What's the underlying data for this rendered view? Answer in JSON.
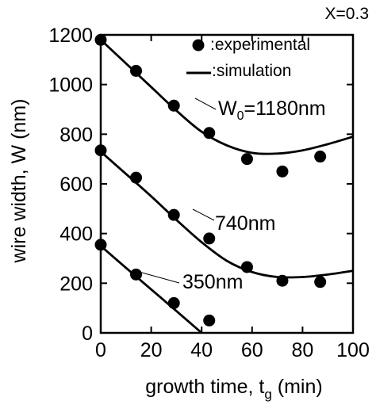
{
  "chart_data": {
    "type": "scatter",
    "annotation_top": "X=0.3",
    "xlabel_prefix": "growth time, t",
    "xlabel_sub": "g",
    "xlabel_suffix": " (min)",
    "ylabel": "wire width,  W   (nm)",
    "xlim": [
      0,
      100
    ],
    "ylim": [
      0,
      1200
    ],
    "xticks": [
      0,
      20,
      40,
      60,
      80,
      100
    ],
    "yticks": [
      0,
      200,
      400,
      600,
      800,
      1000,
      1200
    ],
    "grid": false,
    "legend": {
      "position": "top-right",
      "experimental_label": ":experimental",
      "simulation_label": ":simulation"
    },
    "series": [
      {
        "label_main": "W",
        "label_sub": "0",
        "label_rest": "=1180nm",
        "experimental": [
          [
            0,
            1180
          ],
          [
            14,
            1055
          ],
          [
            29,
            915
          ],
          [
            43,
            805
          ],
          [
            58,
            700
          ],
          [
            72,
            650
          ],
          [
            87,
            710
          ]
        ],
        "simulation": [
          [
            0,
            1180
          ],
          [
            10,
            1085
          ],
          [
            20,
            990
          ],
          [
            30,
            895
          ],
          [
            40,
            810
          ],
          [
            50,
            755
          ],
          [
            60,
            725
          ],
          [
            70,
            722
          ],
          [
            80,
            735
          ],
          [
            90,
            760
          ],
          [
            100,
            790
          ]
        ]
      },
      {
        "label_main": "",
        "label_sub": "",
        "label_rest": "740nm",
        "experimental": [
          [
            0,
            735
          ],
          [
            14,
            625
          ],
          [
            29,
            475
          ],
          [
            43,
            380
          ],
          [
            58,
            265
          ],
          [
            72,
            210
          ],
          [
            87,
            205
          ]
        ],
        "simulation": [
          [
            0,
            730
          ],
          [
            10,
            640
          ],
          [
            20,
            550
          ],
          [
            30,
            455
          ],
          [
            40,
            365
          ],
          [
            50,
            290
          ],
          [
            60,
            245
          ],
          [
            70,
            225
          ],
          [
            80,
            225
          ],
          [
            90,
            235
          ],
          [
            100,
            250
          ]
        ]
      },
      {
        "label_main": "",
        "label_sub": "",
        "label_rest": "350nm",
        "experimental": [
          [
            0,
            355
          ],
          [
            14,
            235
          ],
          [
            29,
            120
          ],
          [
            43,
            50
          ]
        ],
        "simulation": [
          [
            0,
            350
          ],
          [
            10,
            262
          ],
          [
            20,
            175
          ],
          [
            30,
            88
          ],
          [
            40,
            0
          ]
        ]
      }
    ]
  }
}
